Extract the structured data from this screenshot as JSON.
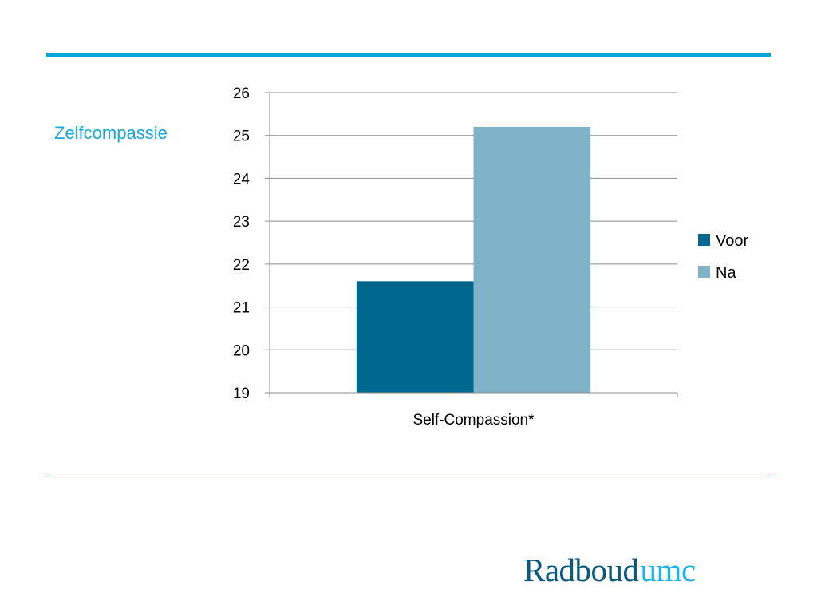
{
  "slide": {
    "title": "Zelfcompassie"
  },
  "logo": {
    "part_a": "Radboud",
    "part_b": "umc"
  },
  "colors": {
    "accent": "#00a8d8",
    "title": "#1aa6d8",
    "series_voor": "#00688f",
    "series_na": "#7fb3c8",
    "grid": "#8c8c8c",
    "logo_dark": "#0a5a7d",
    "logo_light": "#1db3e3"
  },
  "chart_data": {
    "type": "bar",
    "categories": [
      "Self-Compassion*"
    ],
    "series": [
      {
        "name": "Voor",
        "values": [
          21.6
        ],
        "color": "#00688f"
      },
      {
        "name": "Na",
        "values": [
          25.2
        ],
        "color": "#7fb3c8"
      }
    ],
    "ylim": [
      19,
      26
    ],
    "yticks": [
      19,
      20,
      21,
      22,
      23,
      24,
      25,
      26
    ],
    "ytick_labels": [
      "19",
      "20",
      "21",
      "22",
      "23",
      "24",
      "25",
      "26"
    ],
    "grid": true,
    "legend_position": "right",
    "title": "",
    "xlabel": "",
    "ylabel": ""
  }
}
